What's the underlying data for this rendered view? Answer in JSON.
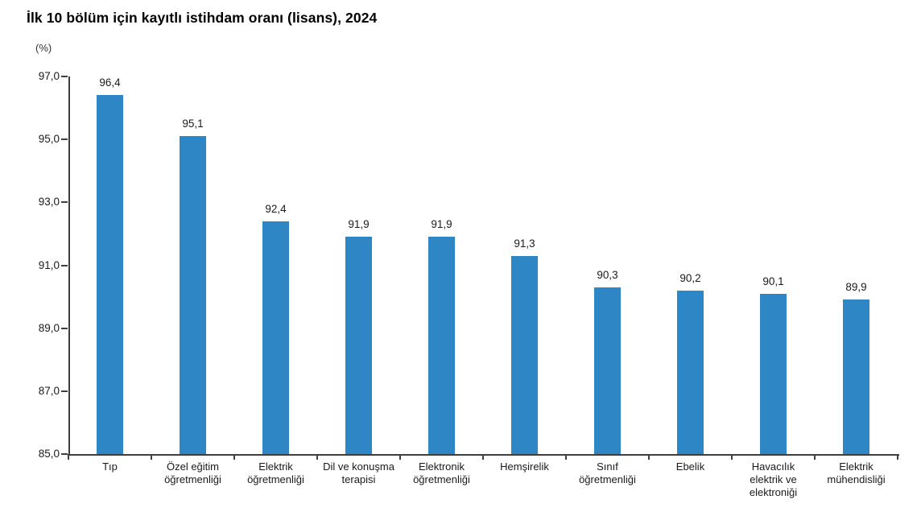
{
  "title": "İlk 10 bölüm için kayıtlı istihdam oranı (lisans), 2024",
  "axis_unit_label": "(%)",
  "chart_data": {
    "type": "bar",
    "title": "İlk 10 bölüm için kayıtlı istihdam oranı (lisans), 2024",
    "ylabel": "(%)",
    "categories": [
      "Tıp",
      "Özel eğitim öğretmenliği",
      "Elektrik öğretmenliği",
      "Dil ve konuşma terapisi",
      "Elektronik öğretmenliği",
      "Hemşirelik",
      "Sınıf öğretmenliği",
      "Ebelik",
      "Havacılık elektrik ve elektroniği",
      "Elektrik mühendisliği"
    ],
    "category_labels": [
      "Tıp",
      "Özel eğitim\nöğretmenliği",
      "Elektrik\nöğretmenliği",
      "Dil ve konuşma\nterapisi",
      "Elektronik\nöğretmenliği",
      "Hemşirelik",
      "Sınıf\nöğretmenliği",
      "Ebelik",
      "Havacılık\nelektrik ve\nelektroniği",
      "Elektrik\nmühendisliği"
    ],
    "values": [
      96.4,
      95.1,
      92.4,
      91.9,
      91.9,
      91.3,
      90.3,
      90.2,
      90.1,
      89.9
    ],
    "value_labels": [
      "96,4",
      "95,1",
      "92,4",
      "91,9",
      "91,9",
      "91,3",
      "90,3",
      "90,2",
      "90,1",
      "89,9"
    ],
    "ylim": [
      85,
      97
    ],
    "ytick_step": 2,
    "ytick_labels": [
      "85,0",
      "87,0",
      "89,0",
      "91,0",
      "93,0",
      "95,0",
      "97,0"
    ],
    "grid": false,
    "legend_position": "none",
    "bar_color": "#2e86c4",
    "axis_color": "#3f3f3f",
    "text_color": "#1a1a1a"
  }
}
